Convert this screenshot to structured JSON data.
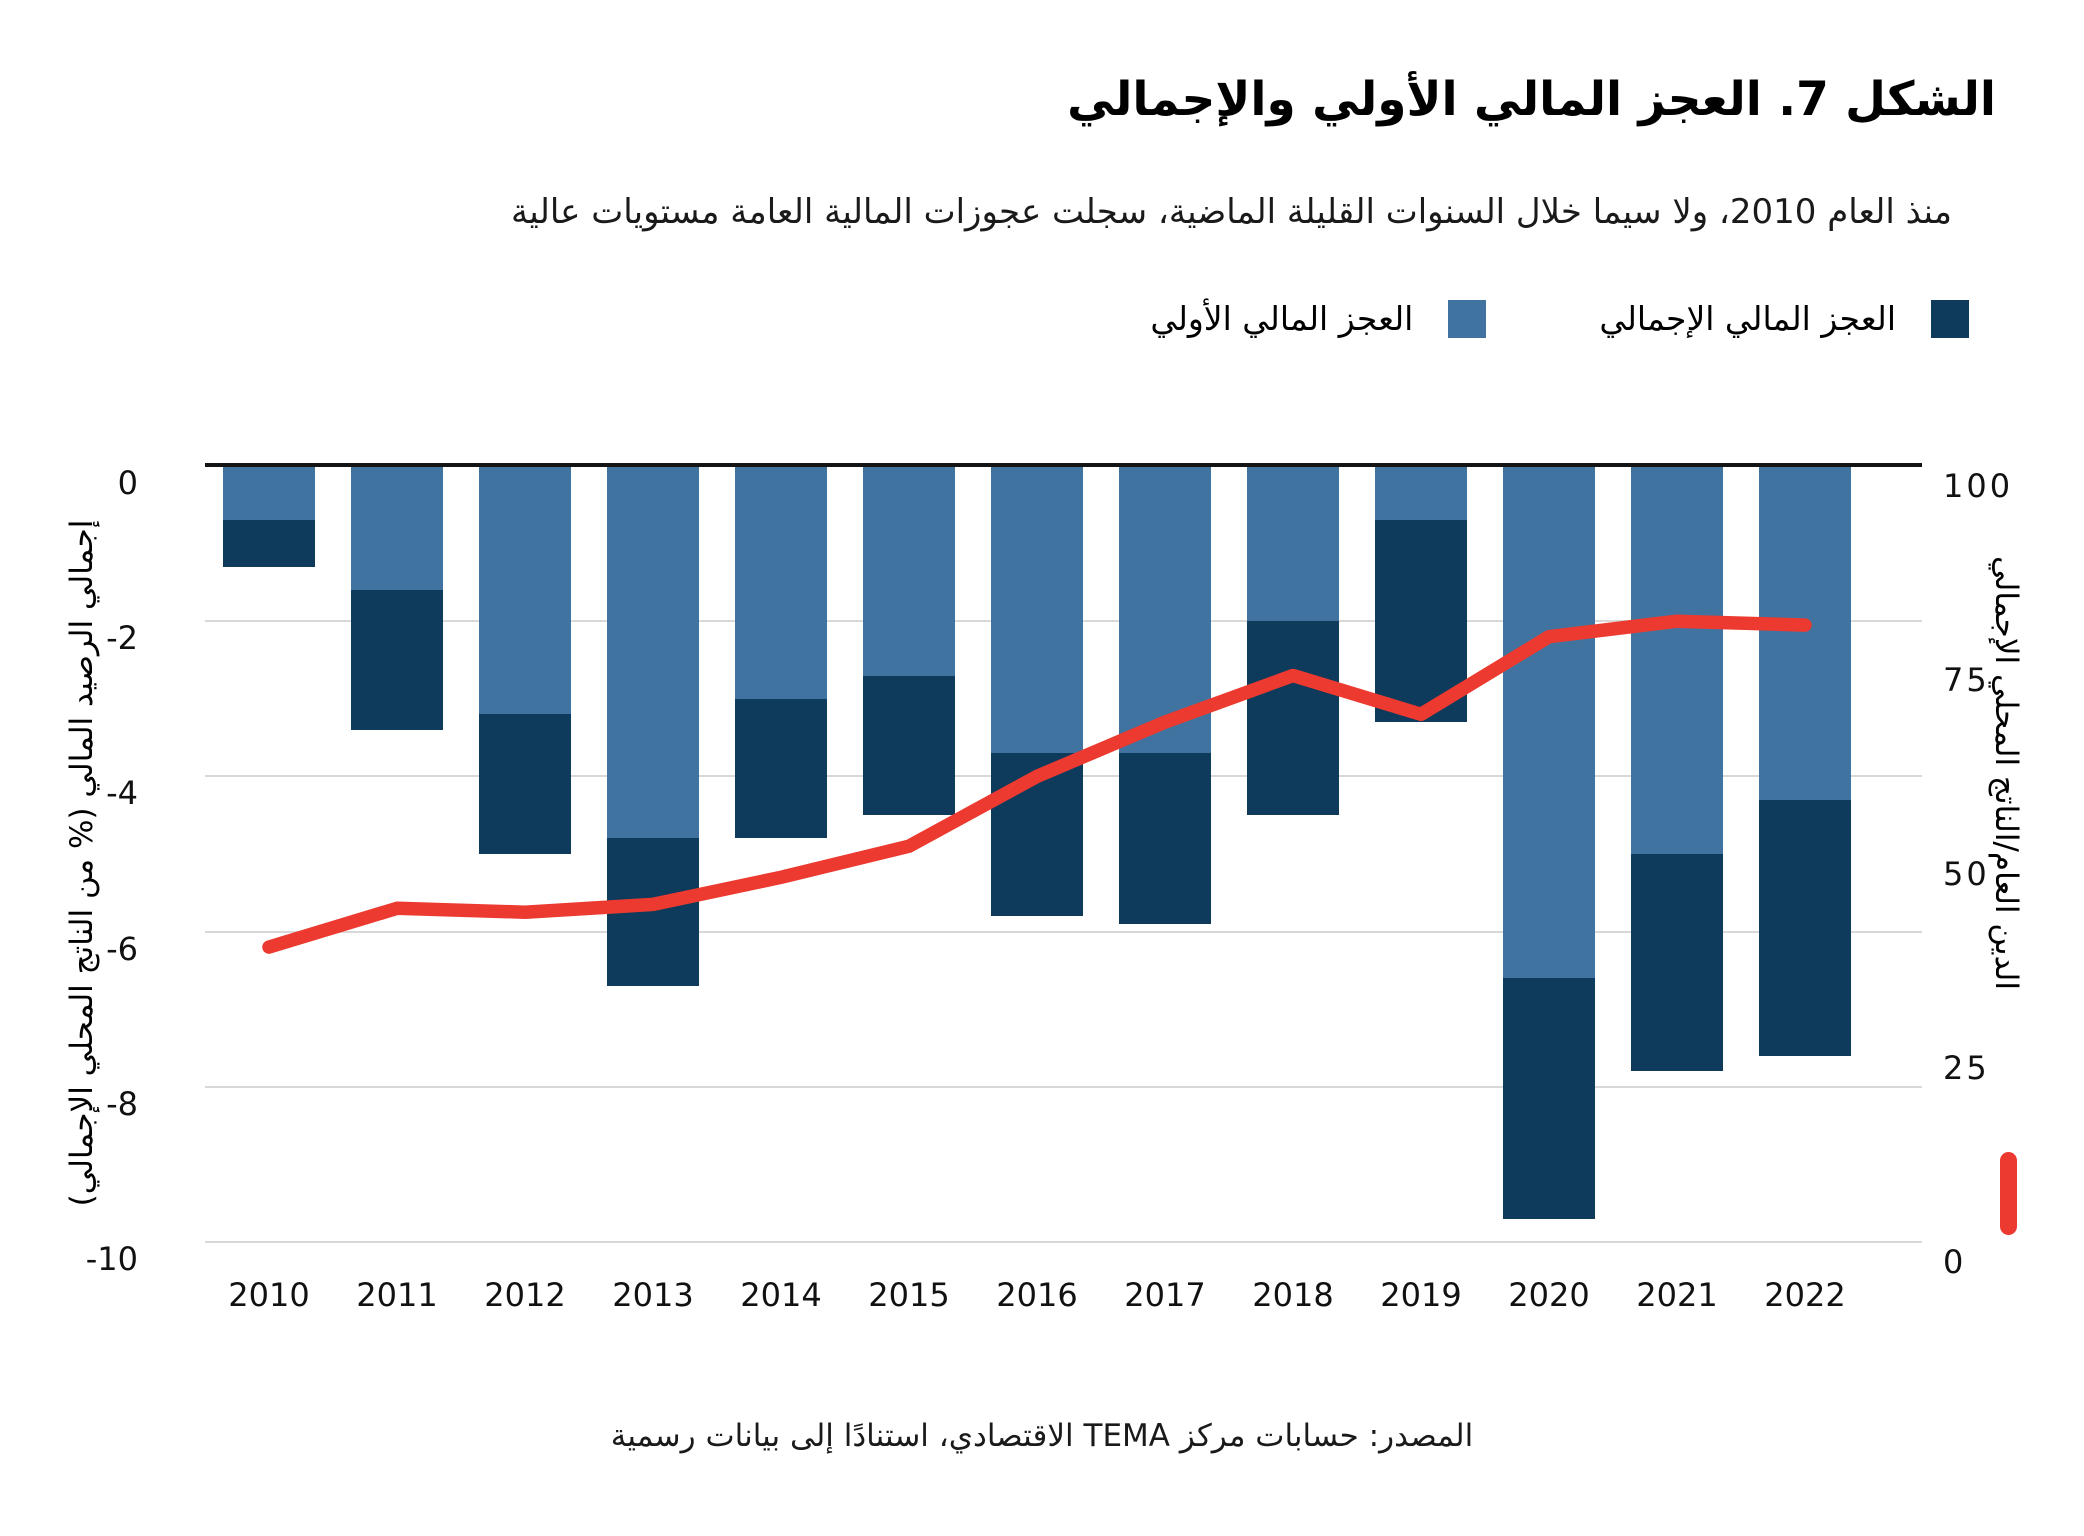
{
  "title": "الشكل 7. العجز المالي الأولي والإجمالي",
  "subtitle": "منذ العام 2010، ولا سيما خلال السنوات القليلة الماضية، سجلت عجوزات المالية العامة مستويات عالية",
  "source": "المصدر: حسابات مركز TEMA الاقتصادي، استنادًا إلى بيانات رسمية",
  "colors": {
    "overall_deficit": "#0E3A5C",
    "primary_deficit": "#40739F",
    "debt_line": "#EC3A30",
    "gridline": "#D8D8D8",
    "axis_line": "#141414"
  },
  "legend": [
    {
      "label": "العجز المالي الإجمالي",
      "color": "#0E3A5C",
      "series": "overall"
    },
    {
      "label": "العجز المالي الأولي",
      "color": "#40739F",
      "series": "primary"
    }
  ],
  "axes": {
    "left": {
      "title": "إجمالي الرصيد المالي (% من الناتج المحلي الإجمالي)",
      "ticks": [
        0,
        -2,
        -4,
        -6,
        -8,
        -10
      ],
      "range": [
        0,
        -10
      ]
    },
    "right": {
      "title": "الدين العام/الناتج المحلي الإجمالي",
      "ticks": [
        100,
        75,
        50,
        25,
        0
      ],
      "range": [
        100,
        0
      ]
    }
  },
  "chart_data": {
    "type": "bar",
    "subtype": "stacked-bars-with-secondary-axis-line",
    "categories": [
      2010,
      2011,
      2012,
      2013,
      2014,
      2015,
      2016,
      2017,
      2018,
      2019,
      2020,
      2021,
      2022
    ],
    "series": [
      {
        "name": "العجز المالي الأولي",
        "type": "bar",
        "axis": "left",
        "color": "#40739F",
        "values": [
          -0.7,
          -1.6,
          -3.2,
          -4.8,
          -3.0,
          -2.7,
          -3.7,
          -3.7,
          -2.0,
          -0.7,
          -6.6,
          -5.0,
          -4.3
        ]
      },
      {
        "name": "العجز المالي الإجمالي",
        "type": "bar",
        "axis": "left",
        "note": "total deficit; bar bottom = this value, dark segment drawn from primary value down to this value",
        "color": "#0E3A5C",
        "values": [
          -1.3,
          -3.4,
          -5.0,
          -6.7,
          -4.8,
          -4.5,
          -5.8,
          -5.9,
          -4.5,
          -3.3,
          -9.7,
          -7.8,
          -7.6
        ]
      },
      {
        "name": "الدين العام/الناتج المحلي الإجمالي",
        "type": "line",
        "axis": "right",
        "color": "#EC3A30",
        "values": [
          38,
          43,
          42.5,
          43.5,
          47,
          51,
          60,
          67,
          73,
          68,
          78,
          80,
          79.5
        ]
      }
    ],
    "title": "الشكل 7. العجز المالي الأولي والإجمالي",
    "xlabel": "",
    "ylabel_left": "إجمالي الرصيد المالي (% من الناتج المحلي الإجمالي)",
    "ylabel_right": "الدين العام/الناتج المحلي الإجمالي",
    "ylim_left": [
      0,
      -10
    ],
    "ylim_right": [
      100,
      0
    ],
    "grid": true,
    "legend_position": "top"
  }
}
